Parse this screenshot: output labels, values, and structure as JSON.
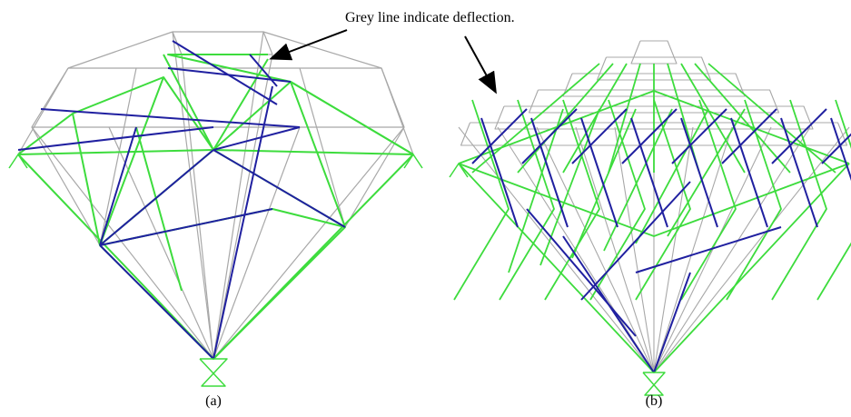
{
  "annotation": "Grey line indicate deflection.",
  "panels": [
    {
      "label": "(a)"
    },
    {
      "label": "(b)"
    }
  ]
}
